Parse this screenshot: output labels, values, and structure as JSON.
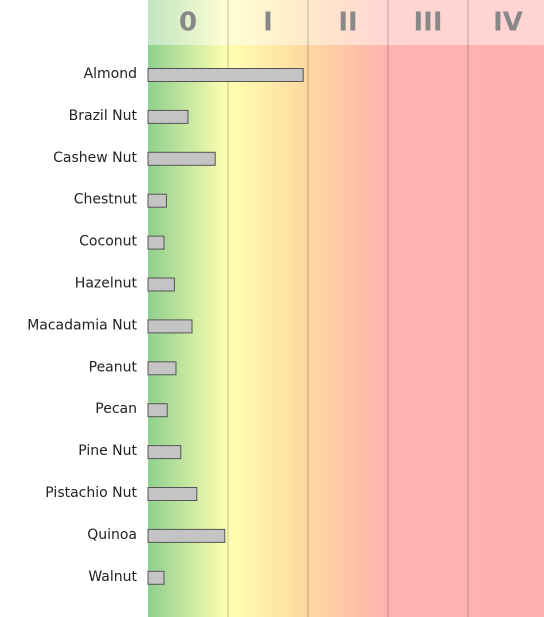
{
  "chart_data": {
    "type": "bar",
    "orientation": "horizontal",
    "categories": [
      "Almond",
      "Brazil Nut",
      "Cashew Nut",
      "Chestnut",
      "Coconut",
      "Hazelnut",
      "Macadamia Nut",
      "Peanut",
      "Pecan",
      "Pine Nut",
      "Pistachio Nut",
      "Quinoa",
      "Walnut"
    ],
    "values": [
      1.94,
      0.5,
      0.84,
      0.23,
      0.2,
      0.33,
      0.55,
      0.35,
      0.24,
      0.41,
      0.61,
      0.96,
      0.2
    ],
    "color": "#c4c4c4",
    "xlim": [
      0,
      5
    ],
    "xticks": [
      {
        "value": 0.5,
        "label": "0"
      },
      {
        "value": 1.5,
        "label": "I"
      },
      {
        "value": 2.5,
        "label": "II"
      },
      {
        "value": 3.5,
        "label": "III"
      },
      {
        "value": 4.5,
        "label": "IV"
      }
    ]
  }
}
